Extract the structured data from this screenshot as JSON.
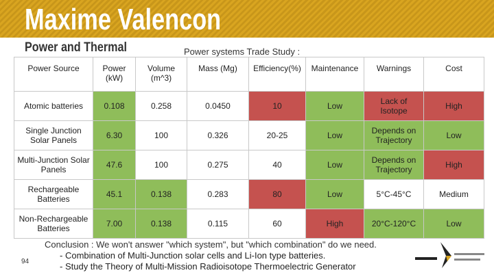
{
  "header": {
    "title": "Maxime Valencon",
    "subtitle": "Power and Thermal"
  },
  "table": {
    "caption": "Power systems Trade Study :",
    "columns": [
      "Power Source",
      "Power (kW)",
      "Volume (m^3)",
      "Mass (Mg)",
      "Efficiency(%)",
      "Maintenance",
      "Warnings",
      "Cost"
    ],
    "rows": [
      [
        {
          "text": "Atomic batteries",
          "color": "#ffffff"
        },
        {
          "text": "0.108",
          "color": "#8fbd5a"
        },
        {
          "text": "0.258",
          "color": "#ffffff"
        },
        {
          "text": "0.0450",
          "color": "#ffffff"
        },
        {
          "text": "10",
          "color": "#c5524f"
        },
        {
          "text": "Low",
          "color": "#8fbd5a"
        },
        {
          "text": "Lack of Isotope",
          "color": "#c5524f"
        },
        {
          "text": "High",
          "color": "#c5524f"
        }
      ],
      [
        {
          "text": "Single Junction Solar Panels",
          "color": "#ffffff"
        },
        {
          "text": "6.30",
          "color": "#8fbd5a"
        },
        {
          "text": "100",
          "color": "#ffffff"
        },
        {
          "text": "0.326",
          "color": "#ffffff"
        },
        {
          "text": "20-25",
          "color": "#ffffff"
        },
        {
          "text": "Low",
          "color": "#8fbd5a"
        },
        {
          "text": "Depends on Trajectory",
          "color": "#8fbd5a"
        },
        {
          "text": "Low",
          "color": "#8fbd5a"
        }
      ],
      [
        {
          "text": "Multi-Junction Solar Panels",
          "color": "#ffffff"
        },
        {
          "text": "47.6",
          "color": "#8fbd5a"
        },
        {
          "text": "100",
          "color": "#ffffff"
        },
        {
          "text": "0.275",
          "color": "#ffffff"
        },
        {
          "text": "40",
          "color": "#ffffff"
        },
        {
          "text": "Low",
          "color": "#8fbd5a"
        },
        {
          "text": "Depends on Trajectory",
          "color": "#8fbd5a"
        },
        {
          "text": "High",
          "color": "#c5524f"
        }
      ],
      [
        {
          "text": "Rechargeable Batteries",
          "color": "#ffffff"
        },
        {
          "text": "45.1",
          "color": "#8fbd5a"
        },
        {
          "text": "0.138",
          "color": "#8fbd5a"
        },
        {
          "text": "0.283",
          "color": "#ffffff"
        },
        {
          "text": "80",
          "color": "#c5524f"
        },
        {
          "text": "Low",
          "color": "#8fbd5a"
        },
        {
          "text": "5°C-45°C",
          "color": "#ffffff"
        },
        {
          "text": "Medium",
          "color": "#ffffff"
        }
      ],
      [
        {
          "text": "Non-Rechargeable Batteries",
          "color": "#ffffff"
        },
        {
          "text": "7.00",
          "color": "#8fbd5a"
        },
        {
          "text": "0.138",
          "color": "#8fbd5a"
        },
        {
          "text": "0.115",
          "color": "#ffffff"
        },
        {
          "text": "60",
          "color": "#ffffff"
        },
        {
          "text": "High",
          "color": "#c5524f"
        },
        {
          "text": "20°C-120°C",
          "color": "#8fbd5a"
        },
        {
          "text": "Low",
          "color": "#8fbd5a"
        }
      ]
    ]
  },
  "conclusion": {
    "lead": "Conclusion : We won't answer \"which system\", but \"which combination\" do we need.",
    "bullets": [
      "Combination of Multi-Junction solar cells and Li-Ion type batteries.",
      "Study the Theory of Multi-Mission Radioisotope Thermoelectric Generator"
    ]
  },
  "page_number": "94"
}
